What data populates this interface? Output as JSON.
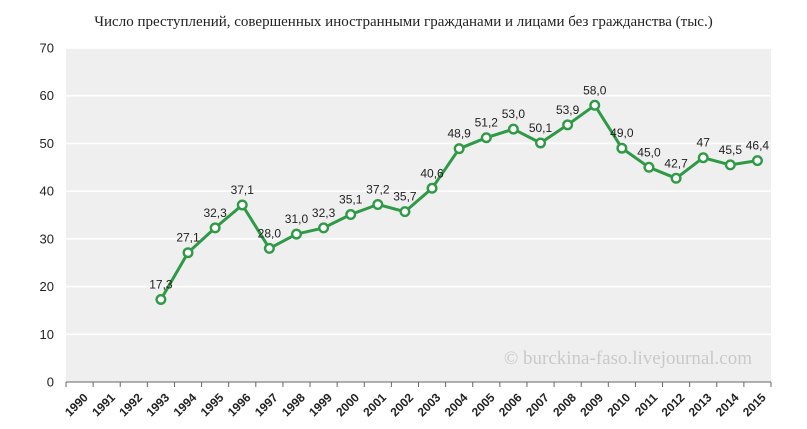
{
  "chart_data": {
    "type": "line",
    "title": "Число преступлений, совершенных иностранными гражданами и лицами без гражданства (тыс.)",
    "categories": [
      "1990",
      "1991",
      "1992",
      "1993",
      "1994",
      "1995",
      "1996",
      "1997",
      "1998",
      "1999",
      "2000",
      "2001",
      "2002",
      "2003",
      "2004",
      "2005",
      "2006",
      "2007",
      "2008",
      "2009",
      "2010",
      "2011",
      "2012",
      "2013",
      "2014",
      "2015"
    ],
    "y_ticks": [
      "0",
      "10",
      "20",
      "30",
      "40",
      "50",
      "60",
      "70"
    ],
    "ylim": [
      0,
      70
    ],
    "grid": true,
    "series": [
      {
        "values": [
          null,
          null,
          null,
          17.3,
          27.1,
          32.3,
          37.1,
          28.0,
          31.0,
          32.3,
          35.1,
          37.2,
          35.7,
          40.6,
          48.9,
          51.2,
          53.0,
          50.1,
          53.9,
          58.0,
          49.0,
          45.0,
          42.7,
          47,
          45.5,
          46.4
        ],
        "data_labels": [
          null,
          null,
          null,
          "17,3",
          "27,1",
          "32,3",
          "37,1",
          "28,0",
          "31,0",
          "32,3",
          "35,1",
          "37,2",
          "35,7",
          "40,6",
          "48,9",
          "51,2",
          "53,0",
          "50,1",
          "53,9",
          "58,0",
          "49,0",
          "45,0",
          "42,7",
          "47",
          "45,5",
          "46,4"
        ]
      }
    ],
    "watermark": "© burckina-faso.livejournal.com",
    "colors": {
      "line": "#2e9a45",
      "plot_bg": "#efefef",
      "grid": "#ffffff",
      "marker_fill": "#ffffff",
      "text": "#222222"
    }
  }
}
